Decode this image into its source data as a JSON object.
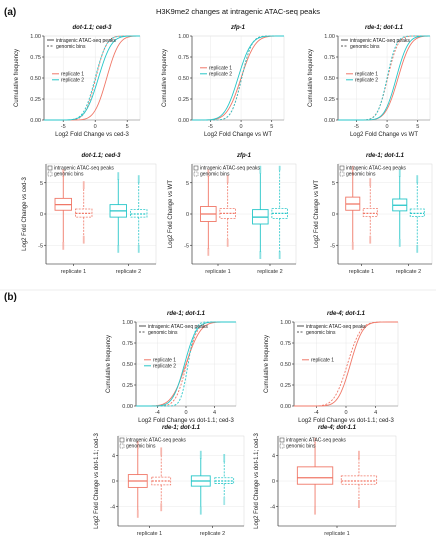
{
  "figure": {
    "main_title": "H3K9me2 changes at intragenic ATAC-seq peaks",
    "panel_a_label": "(a)",
    "panel_b_label": "(b)"
  },
  "colors": {
    "replicate1": "#f07868",
    "replicate2": "#26c6c8",
    "axis": "#222222"
  },
  "chart_data": [
    {
      "panel": "a",
      "type": "line",
      "title": "dot-1.1; ced-3",
      "xlabel": "Log2 Fold Change vs ced-3",
      "ylabel": "Cumulative frequency",
      "xlim": [
        -8,
        7
      ],
      "ylim": [
        0,
        1.0
      ],
      "xticks": [
        "-5",
        "0",
        "5"
      ],
      "yticks": [
        "0.00",
        "0.25",
        "0.50",
        "0.75",
        "1.00"
      ],
      "legend": {
        "linetype": [
          "intragenic ATAC-seq peaks",
          "genomic bins"
        ],
        "color": [
          "replicate 1",
          "replicate 2"
        ]
      },
      "series": [
        {
          "name": "replicate 1",
          "style": "solid",
          "mu": 1.8,
          "s": 1.5
        },
        {
          "name": "replicate 1",
          "style": "dashed",
          "mu": 0.1,
          "s": 1.3
        },
        {
          "name": "replicate 2",
          "style": "solid",
          "mu": 0.5,
          "s": 1.6
        },
        {
          "name": "replicate 2",
          "style": "dashed",
          "mu": 0.0,
          "s": 1.4
        }
      ]
    },
    {
      "panel": "a",
      "type": "line",
      "title": "zfp-1",
      "xlabel": "Log2 Fold Change vs WT",
      "ylabel": "Cumulative frequency",
      "xlim": [
        -8,
        7
      ],
      "ylim": [
        0,
        1.0
      ],
      "xticks": [
        "-5",
        "0",
        "5"
      ],
      "yticks": [
        "0.00",
        "0.25",
        "0.50",
        "0.75",
        "1.00"
      ],
      "legend": {
        "linetype": [],
        "color": [
          "replicate 1",
          "replicate 2"
        ]
      },
      "series": [
        {
          "name": "replicate 1",
          "style": "solid",
          "mu": 0.0,
          "s": 1.8
        },
        {
          "name": "replicate 1",
          "style": "dashed",
          "mu": 0.1,
          "s": 1.3
        },
        {
          "name": "replicate 2",
          "style": "solid",
          "mu": -0.5,
          "s": 1.7
        },
        {
          "name": "replicate 2",
          "style": "dashed",
          "mu": 0.1,
          "s": 1.3
        }
      ]
    },
    {
      "panel": "a",
      "type": "line",
      "title": "rde-1; dot-1.1",
      "xlabel": "Log2 Fold Change vs WT",
      "ylabel": "Cumulative frequency",
      "xlim": [
        -8,
        7
      ],
      "ylim": [
        0,
        1.0
      ],
      "xticks": [
        "-5",
        "0",
        "5"
      ],
      "yticks": [
        "0.00",
        "0.25",
        "0.50",
        "0.75",
        "1.00"
      ],
      "legend": {
        "linetype": [
          "intragenic ATAC-seq peaks",
          "genomic bins"
        ],
        "color": [
          "replicate 1",
          "replicate 2"
        ]
      },
      "series": [
        {
          "name": "replicate 1",
          "style": "solid",
          "mu": 1.8,
          "s": 1.6
        },
        {
          "name": "replicate 1",
          "style": "dashed",
          "mu": 0.1,
          "s": 1.3
        },
        {
          "name": "replicate 2",
          "style": "solid",
          "mu": 1.5,
          "s": 1.5
        },
        {
          "name": "replicate 2",
          "style": "dashed",
          "mu": 0.0,
          "s": 1.2
        }
      ]
    },
    {
      "panel": "a",
      "type": "box",
      "title": "dot-1.1; ced-3",
      "ylabel": "Log2 Fold Change vs ced-3",
      "ylim": [
        -8,
        8
      ],
      "yticks": [
        "-5",
        "0",
        "5"
      ],
      "categories": [
        "replicate 1",
        "replicate 2"
      ],
      "legend": [
        "intragenic ATAC-seq peaks",
        "genomic bins"
      ],
      "boxes": [
        {
          "group": "replicate 1",
          "kind": "peaks",
          "min": -4.5,
          "q1": 0.6,
          "median": 1.5,
          "q3": 2.5,
          "max": 6
        },
        {
          "group": "replicate 1",
          "kind": "bins",
          "min": -3.5,
          "q1": -0.5,
          "median": 0.1,
          "q3": 0.8,
          "max": 4
        },
        {
          "group": "replicate 2",
          "kind": "peaks",
          "min": -5,
          "q1": -0.5,
          "median": 0.5,
          "q3": 1.5,
          "max": 5.5
        },
        {
          "group": "replicate 2",
          "kind": "bins",
          "min": -5,
          "q1": -0.5,
          "median": 0.0,
          "q3": 0.7,
          "max": 5
        }
      ]
    },
    {
      "panel": "a",
      "type": "box",
      "title": "zfp-1",
      "ylabel": "Log2 Fold Change vs WT",
      "ylim": [
        -8,
        8
      ],
      "yticks": [
        "-5",
        "0",
        "5"
      ],
      "categories": [
        "replicate 1",
        "replicate 2"
      ],
      "legend": [
        "intragenic ATAC-seq peaks",
        "genomic bins"
      ],
      "boxes": [
        {
          "group": "replicate 1",
          "kind": "peaks",
          "min": -5.5,
          "q1": -1.2,
          "median": 0.0,
          "q3": 1.2,
          "max": 6
        },
        {
          "group": "replicate 1",
          "kind": "bins",
          "min": -4,
          "q1": -0.7,
          "median": 0.1,
          "q3": 0.9,
          "max": 5
        },
        {
          "group": "replicate 2",
          "kind": "peaks",
          "min": -6,
          "q1": -1.6,
          "median": -0.5,
          "q3": 0.7,
          "max": 6.5
        },
        {
          "group": "replicate 2",
          "kind": "bins",
          "min": -6,
          "q1": -0.7,
          "median": 0.1,
          "q3": 0.9,
          "max": 7
        }
      ]
    },
    {
      "panel": "a",
      "type": "box",
      "title": "rde-1; dot-1.1",
      "ylabel": "Log2 Fold Change vs WT",
      "ylim": [
        -8,
        8
      ],
      "yticks": [
        "-5",
        "0",
        "5"
      ],
      "categories": [
        "replicate 1",
        "replicate 2"
      ],
      "legend": [
        "intragenic ATAC-seq peaks",
        "genomic bins"
      ],
      "boxes": [
        {
          "group": "replicate 1",
          "kind": "peaks",
          "min": -4.5,
          "q1": 0.6,
          "median": 1.6,
          "q3": 2.7,
          "max": 7
        },
        {
          "group": "replicate 1",
          "kind": "bins",
          "min": -3.5,
          "q1": -0.4,
          "median": 0.1,
          "q3": 0.9,
          "max": 4.5
        },
        {
          "group": "replicate 2",
          "kind": "peaks",
          "min": -4,
          "q1": 0.5,
          "median": 1.4,
          "q3": 2.4,
          "max": 6
        },
        {
          "group": "replicate 2",
          "kind": "bins",
          "min": -5,
          "q1": -0.4,
          "median": 0.1,
          "q3": 0.8,
          "max": 5
        }
      ]
    },
    {
      "panel": "b",
      "type": "line",
      "title": "rde-1; dot-1.1",
      "xlabel": "Log2 Fold Change vs dot-1.1; ced-3",
      "ylabel": "Cumulative frequency",
      "xlim": [
        -7,
        7
      ],
      "ylim": [
        0,
        1.0
      ],
      "xticks": [
        "-4",
        "0",
        "4"
      ],
      "yticks": [
        "0.00",
        "0.25",
        "0.50",
        "0.75",
        "1.00"
      ],
      "legend": {
        "linetype": [
          "intragenic ATAC-seq peaks",
          "genomic bins"
        ],
        "color": [
          "replicate 1",
          "replicate 2"
        ]
      },
      "series": [
        {
          "name": "replicate 1",
          "style": "solid",
          "mu": 0.0,
          "s": 1.6
        },
        {
          "name": "replicate 1",
          "style": "dashed",
          "mu": 0.1,
          "s": 1.2
        },
        {
          "name": "replicate 2",
          "style": "solid",
          "mu": -0.2,
          "s": 1.3
        },
        {
          "name": "replicate 2",
          "style": "dashed",
          "mu": 0.3,
          "s": 0.8
        }
      ]
    },
    {
      "panel": "b",
      "type": "line",
      "title": "rde-4; dot-1.1",
      "xlabel": "Log2 Fold Change vs dot-1.1; ced-3",
      "ylabel": "Cumulative frequency",
      "xlim": [
        -7,
        7
      ],
      "ylim": [
        0,
        1.0
      ],
      "xticks": [
        "-4",
        "0",
        "4"
      ],
      "yticks": [
        "0.00",
        "0.25",
        "0.50",
        "0.75",
        "1.00"
      ],
      "legend": {
        "linetype": [
          "intragenic ATAC-seq peaks",
          "genomic bins"
        ],
        "color": [
          "replicate 1"
        ]
      },
      "series": [
        {
          "name": "replicate 1",
          "style": "solid",
          "mu": 0.6,
          "s": 1.3
        },
        {
          "name": "replicate 1",
          "style": "dashed",
          "mu": 0.2,
          "s": 1.4
        }
      ]
    },
    {
      "panel": "b",
      "type": "box",
      "title": "rde-1; dot-1.1",
      "ylabel": "Log2 Fold Change vs dot-1.1; ced-3",
      "ylim": [
        -7,
        7
      ],
      "yticks": [
        "-4",
        "0",
        "4"
      ],
      "categories": [
        "replicate 1",
        "replicate 2"
      ],
      "legend": [
        "intragenic ATAC-seq peaks",
        "genomic bins"
      ],
      "boxes": [
        {
          "group": "replicate 1",
          "kind": "peaks",
          "min": -4.5,
          "q1": -1.0,
          "median": 0.0,
          "q3": 1.0,
          "max": 5
        },
        {
          "group": "replicate 1",
          "kind": "bins",
          "min": -3.5,
          "q1": -0.6,
          "median": 0.0,
          "q3": 0.6,
          "max": 4
        },
        {
          "group": "replicate 2",
          "kind": "peaks",
          "min": -4,
          "q1": -0.8,
          "median": 0.0,
          "q3": 0.8,
          "max": 3.5
        },
        {
          "group": "replicate 2",
          "kind": "bins",
          "min": -2.5,
          "q1": -0.4,
          "median": 0.0,
          "q3": 0.5,
          "max": 3
        }
      ]
    },
    {
      "panel": "b",
      "type": "box",
      "title": "rde-4; dot-1.1",
      "ylabel": "Log2 Fold Change vs dot-1.1; ced-3",
      "ylim": [
        -7,
        7
      ],
      "yticks": [
        "-4",
        "0",
        "4"
      ],
      "categories": [
        "replicate 1"
      ],
      "legend": [
        "intragenic ATAC-seq peaks",
        "genomic bins"
      ],
      "boxes": [
        {
          "group": "replicate 1",
          "kind": "peaks",
          "min": -4,
          "q1": -0.5,
          "median": 0.5,
          "q3": 2.2,
          "max": 6
        },
        {
          "group": "replicate 1",
          "kind": "bins",
          "min": -3,
          "q1": -0.5,
          "median": 0.0,
          "q3": 0.8,
          "max": 3.5
        }
      ]
    }
  ]
}
